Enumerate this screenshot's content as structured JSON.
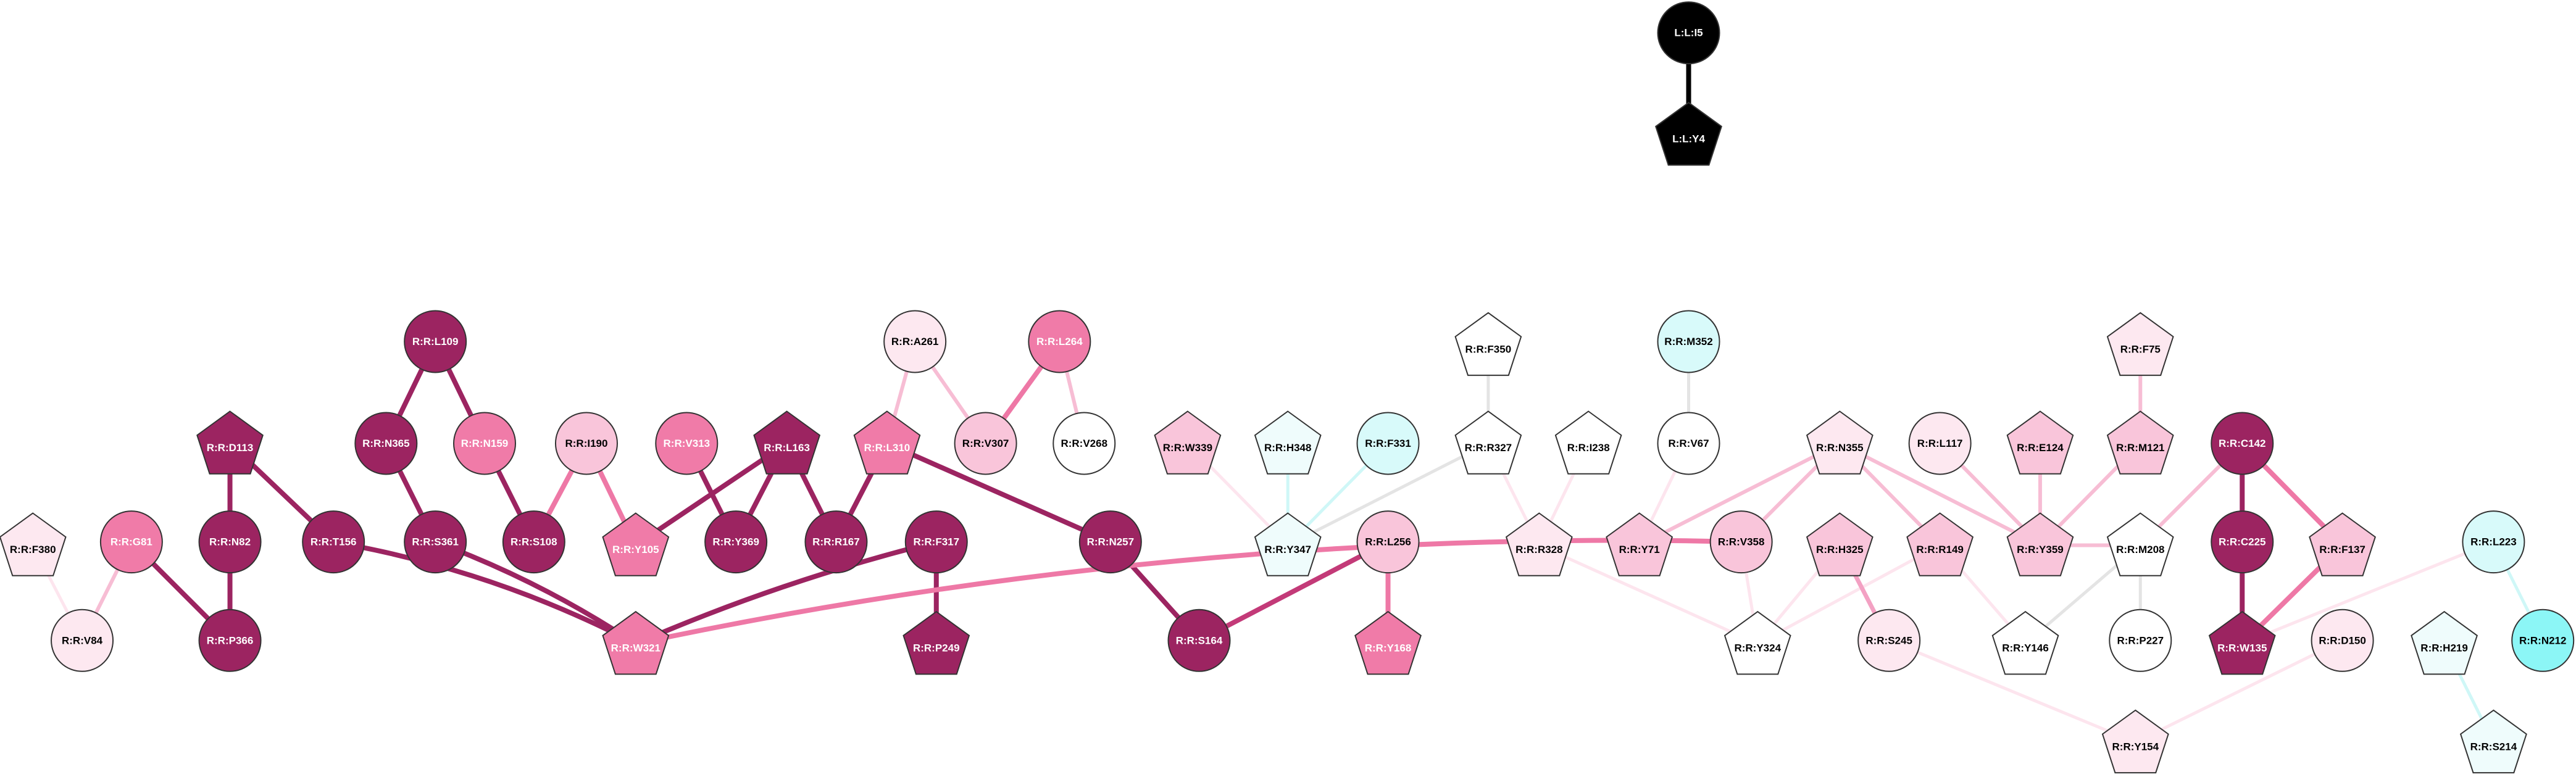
{
  "nodes": [
    {
      "label": "L:L:I5"
    },
    {
      "label": "L:L:Y4"
    },
    {
      "label": "R:R:L109"
    },
    {
      "label": "R:R:A261"
    },
    {
      "label": "R:R:L264"
    },
    {
      "label": "R:R:F350"
    },
    {
      "label": "R:R:M352"
    },
    {
      "label": "R:R:F75"
    },
    {
      "label": "R:R:D113"
    },
    {
      "label": "R:R:N365"
    },
    {
      "label": "R:R:N159"
    },
    {
      "label": "R:R:I190"
    },
    {
      "label": "R:R:V313"
    },
    {
      "label": "R:R:L163"
    },
    {
      "label": "R:R:L310"
    },
    {
      "label": "R:R:V307"
    },
    {
      "label": "R:R:V268"
    },
    {
      "label": "R:R:W339"
    },
    {
      "label": "R:R:H348"
    },
    {
      "label": "R:R:F331"
    },
    {
      "label": "R:R:R327"
    },
    {
      "label": "R:R:I238"
    },
    {
      "label": "R:R:V67"
    },
    {
      "label": "R:R:N355"
    },
    {
      "label": "R:R:L117"
    },
    {
      "label": "R:R:E124"
    },
    {
      "label": "R:R:M121"
    },
    {
      "label": "R:R:C142"
    },
    {
      "label": "R:R:F380"
    },
    {
      "label": "R:R:G81"
    },
    {
      "label": "R:R:N82"
    },
    {
      "label": "R:R:T156"
    },
    {
      "label": "R:R:S361"
    },
    {
      "label": "R:R:S108"
    },
    {
      "label": "R:R:Y105"
    },
    {
      "label": "R:R:Y369"
    },
    {
      "label": "R:R:R167"
    },
    {
      "label": "R:R:F317"
    },
    {
      "label": "R:R:N257"
    },
    {
      "label": "R:R:Y347"
    },
    {
      "label": "R:R:L256"
    },
    {
      "label": "R:R:R328"
    },
    {
      "label": "R:R:Y71"
    },
    {
      "label": "R:R:V358"
    },
    {
      "label": "R:R:H325"
    },
    {
      "label": "R:R:R149"
    },
    {
      "label": "R:R:Y359"
    },
    {
      "label": "R:R:M208"
    },
    {
      "label": "R:R:C225"
    },
    {
      "label": "R:R:F137"
    },
    {
      "label": "R:R:L223"
    },
    {
      "label": "R:R:V84"
    },
    {
      "label": "R:R:P366"
    },
    {
      "label": "R:R:W321"
    },
    {
      "label": "R:R:P249"
    },
    {
      "label": "R:R:S164"
    },
    {
      "label": "R:R:Y168"
    },
    {
      "label": "R:R:Y324"
    },
    {
      "label": "R:R:S245"
    },
    {
      "label": "R:R:Y146"
    },
    {
      "label": "R:R:P227"
    },
    {
      "label": "R:R:W135"
    },
    {
      "label": "R:R:D150"
    },
    {
      "label": "R:R:H219"
    },
    {
      "label": "R:R:N212"
    },
    {
      "label": "R:R:Y154"
    },
    {
      "label": "R:R:S214"
    }
  ]
}
